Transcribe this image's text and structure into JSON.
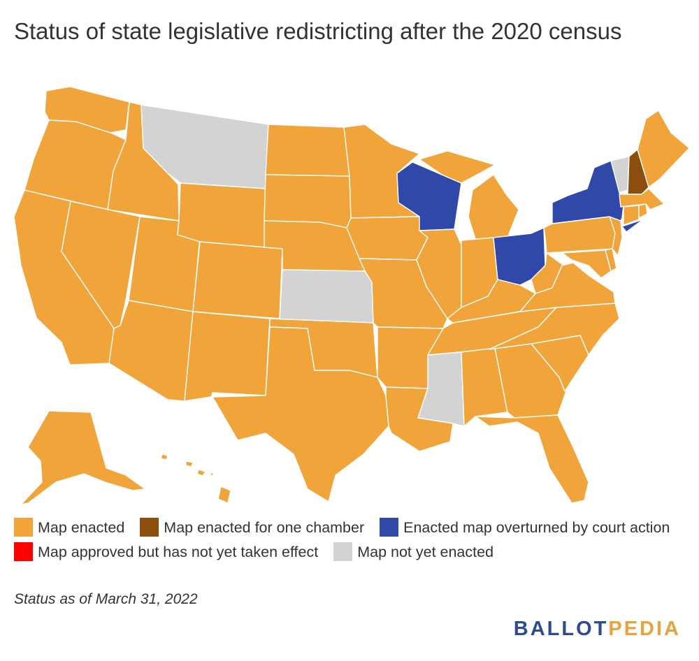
{
  "title": "Status of state legislative redistricting after the 2020 census",
  "legend": [
    {
      "key": "enacted",
      "label": "Map enacted",
      "color": "#f0a43a"
    },
    {
      "key": "one_chamber",
      "label": "Map enacted for one chamber",
      "color": "#8b4e0e"
    },
    {
      "key": "overturned",
      "label": "Enacted map overturned by court action",
      "color": "#3049a8"
    },
    {
      "key": "approved",
      "label": "Map approved but has not yet taken effect",
      "color": "#ff0000"
    },
    {
      "key": "not_enacted",
      "label": "Map not yet enacted",
      "color": "#d3d3d3"
    }
  ],
  "states": {
    "WA": "enacted",
    "OR": "enacted",
    "CA": "enacted",
    "ID": "enacted",
    "NV": "enacted",
    "UT": "enacted",
    "AZ": "enacted",
    "MT": "not_enacted",
    "WY": "enacted",
    "CO": "enacted",
    "NM": "enacted",
    "ND": "enacted",
    "SD": "enacted",
    "NE": "enacted",
    "KS": "not_enacted",
    "OK": "enacted",
    "TX": "enacted",
    "MN": "enacted",
    "IA": "enacted",
    "MO": "enacted",
    "AR": "enacted",
    "LA": "enacted",
    "WI": "overturned",
    "IL": "enacted",
    "MS": "not_enacted",
    "MI": "enacted",
    "IN": "enacted",
    "OH": "overturned",
    "KY": "enacted",
    "TN": "enacted",
    "AL": "enacted",
    "GA": "enacted",
    "FL": "enacted",
    "SC": "enacted",
    "NC": "enacted",
    "VA": "enacted",
    "WV": "enacted",
    "PA": "enacted",
    "NY": "overturned",
    "VT": "not_enacted",
    "NH": "one_chamber",
    "ME": "enacted",
    "MA": "enacted",
    "CT": "enacted",
    "RI": "enacted",
    "NJ": "enacted",
    "DE": "enacted",
    "MD": "enacted",
    "AK": "enacted",
    "HI": "enacted"
  },
  "note": "Status as of March 31, 2022",
  "logo": {
    "part1": "BALLOT",
    "part2": "PEDIA"
  }
}
